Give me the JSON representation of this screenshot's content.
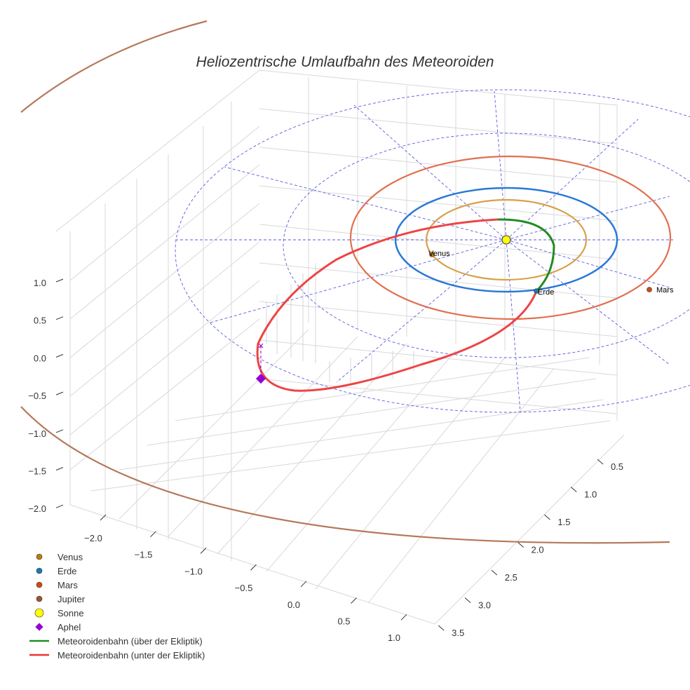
{
  "chart_data": {
    "type": "line3d",
    "title": "Heliozentrische Umlaufbahn des Meteoroiden",
    "x_ticks": [
      "−2.0",
      "−1.5",
      "−1.0",
      "−0.5",
      "0.0",
      "0.5",
      "1.0"
    ],
    "y_ticks": [
      "0.5",
      "1.0",
      "1.5",
      "2.0",
      "2.5",
      "3.0",
      "3.5"
    ],
    "z_ticks": [
      "1.0",
      "0.5",
      "0.0",
      "−0.5",
      "−1.0",
      "−1.5",
      "−2.0"
    ],
    "planet_labels": {
      "venus": "Venus",
      "erde": "Erde",
      "mars": "Mars"
    },
    "legend": [
      {
        "label": "Venus",
        "color": "#c07a10",
        "marker": "circle"
      },
      {
        "label": "Erde",
        "color": "#1f77b4",
        "marker": "circle"
      },
      {
        "label": "Mars",
        "color": "#d04a10",
        "marker": "circle"
      },
      {
        "label": "Jupiter",
        "color": "#a0522d",
        "marker": "circle"
      },
      {
        "label": "Sonne",
        "color": "#ffff00",
        "marker": "circle"
      },
      {
        "label": "Aphel",
        "color": "#9400d3",
        "marker": "diamond"
      },
      {
        "label": "Meteoroidenbahn (über der Ekliptik)",
        "color": "#228b22",
        "marker": "line"
      },
      {
        "label": "Meteoroidenbahn (unter der Ekliptik)",
        "color": "#ee3333",
        "marker": "line"
      }
    ],
    "legend_placement": "bottom-left"
  }
}
